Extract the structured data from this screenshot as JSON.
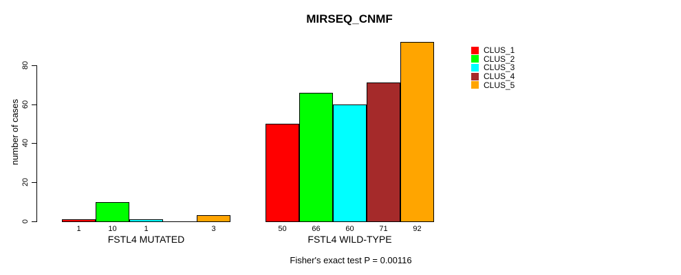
{
  "chart_data": {
    "type": "bar",
    "title": "MIRSEQ_CNMF",
    "ylabel": "number of cases",
    "footnote": "Fisher's exact test P = 0.00116",
    "yticks": [
      0,
      20,
      40,
      60,
      80
    ],
    "ylim": [
      0,
      95
    ],
    "grid": false,
    "legend_position": "top-right",
    "categories": [
      "FSTL4 MUTATED",
      "FSTL4 WILD-TYPE"
    ],
    "series": [
      {
        "name": "CLUS_1",
        "color": "#ff0000",
        "values": [
          1,
          50
        ]
      },
      {
        "name": "CLUS_2",
        "color": "#00ff00",
        "values": [
          10,
          66
        ]
      },
      {
        "name": "CLUS_3",
        "color": "#00ffff",
        "values": [
          1,
          60
        ]
      },
      {
        "name": "CLUS_4",
        "color": "#a52a2a",
        "values": [
          0,
          71
        ]
      },
      {
        "name": "CLUS_5",
        "color": "#ffa500",
        "values": [
          3,
          92
        ]
      }
    ],
    "bar_labels": [
      [
        "1",
        "10",
        "1",
        "",
        "3"
      ],
      [
        "50",
        "66",
        "60",
        "71",
        "92"
      ]
    ],
    "legend": [
      {
        "label": "CLUS_1",
        "color": "#ff0000"
      },
      {
        "label": "CLUS_2",
        "color": "#00ff00"
      },
      {
        "label": "CLUS_3",
        "color": "#00ffff"
      },
      {
        "label": "CLUS_4",
        "color": "#a52a2a"
      },
      {
        "label": "CLUS_5",
        "color": "#ffa500"
      }
    ],
    "axis_color": "#000000",
    "bar_border_color": "#000000"
  }
}
